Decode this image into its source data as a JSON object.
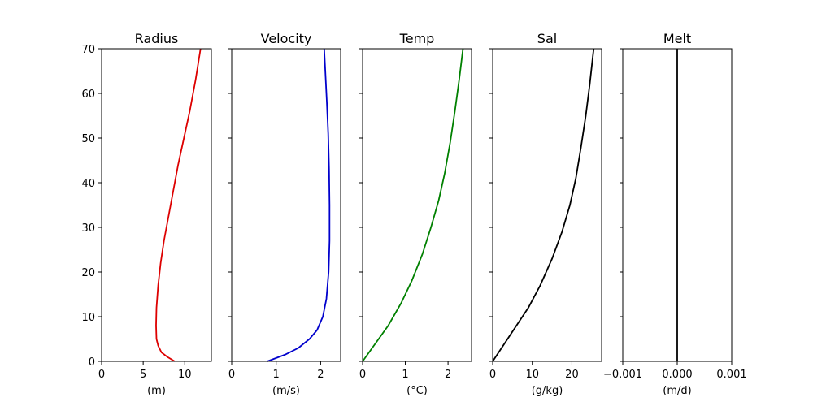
{
  "chart_data": [
    {
      "type": "line",
      "title": "Radius",
      "xlabel": "(m)",
      "xlim": [
        0,
        13.2
      ],
      "ylim": [
        0,
        70
      ],
      "xticks": [
        0,
        5,
        10
      ],
      "xtick_labels": [
        "0",
        "5",
        "10"
      ],
      "yticks": [
        0,
        10,
        20,
        30,
        40,
        50,
        60,
        70
      ],
      "ytick_labels": [
        "0",
        "10",
        "20",
        "30",
        "40",
        "50",
        "60",
        "70"
      ],
      "color": "#dd0000",
      "series": [
        {
          "x": [
            8.8,
            7.9,
            7.2,
            6.8,
            6.6,
            6.55,
            6.6,
            6.8,
            7.1,
            7.5,
            8.0,
            8.6,
            9.2,
            9.9,
            10.6,
            11.3,
            11.9
          ],
          "y": [
            0,
            1,
            2,
            3.5,
            5,
            8,
            12,
            17,
            22,
            27,
            32,
            38,
            44,
            50,
            56,
            63,
            70
          ]
        }
      ]
    },
    {
      "type": "line",
      "title": "Velocity",
      "xlabel": "(m/s)",
      "xlim": [
        0,
        2.45
      ],
      "ylim": [
        0,
        70
      ],
      "xticks": [
        0,
        1,
        2
      ],
      "xtick_labels": [
        "0",
        "1",
        "2"
      ],
      "yticks": [
        0,
        10,
        20,
        30,
        40,
        50,
        60,
        70
      ],
      "ytick_labels": [
        "",
        "",
        "",
        "",
        "",
        "",
        "",
        ""
      ],
      "color": "#0000cc",
      "series": [
        {
          "x": [
            0.8,
            1.2,
            1.5,
            1.75,
            1.92,
            2.05,
            2.13,
            2.18,
            2.2,
            2.2,
            2.19,
            2.17,
            2.14,
            2.11,
            2.08
          ],
          "y": [
            0,
            1.5,
            3,
            5,
            7,
            10,
            14,
            20,
            27,
            35,
            43,
            51,
            58,
            64,
            70
          ]
        }
      ]
    },
    {
      "type": "line",
      "title": "Temp",
      "xlabel": "(°C)",
      "xlim": [
        0,
        2.55
      ],
      "ylim": [
        0,
        70
      ],
      "xticks": [
        0,
        1,
        2
      ],
      "xtick_labels": [
        "0",
        "1",
        "2"
      ],
      "yticks": [
        0,
        10,
        20,
        30,
        40,
        50,
        60,
        70
      ],
      "ytick_labels": [
        "",
        "",
        "",
        "",
        "",
        "",
        "",
        ""
      ],
      "color": "#008000",
      "series": [
        {
          "x": [
            0,
            0.3,
            0.6,
            0.9,
            1.15,
            1.4,
            1.6,
            1.78,
            1.92,
            2.05,
            2.16,
            2.26,
            2.35
          ],
          "y": [
            0,
            4,
            8,
            13,
            18,
            24,
            30,
            36,
            42,
            49,
            56,
            63,
            70
          ]
        }
      ]
    },
    {
      "type": "line",
      "title": "Sal",
      "xlabel": "(g/kg)",
      "xlim": [
        0,
        27.5
      ],
      "ylim": [
        0,
        70
      ],
      "xticks": [
        0,
        10,
        20
      ],
      "xtick_labels": [
        "0",
        "10",
        "20"
      ],
      "yticks": [
        0,
        10,
        20,
        30,
        40,
        50,
        60,
        70
      ],
      "ytick_labels": [
        "",
        "",
        "",
        "",
        "",
        "",
        "",
        ""
      ],
      "color": "#000000",
      "series": [
        {
          "x": [
            0,
            3,
            6,
            9,
            12,
            15,
            17.5,
            19.5,
            21,
            22.3,
            23.5,
            24.5,
            25.5
          ],
          "y": [
            0,
            4,
            8,
            12,
            17,
            23,
            29,
            35,
            41,
            48,
            55,
            62,
            70
          ]
        }
      ]
    },
    {
      "type": "line",
      "title": "Melt",
      "xlabel": "(m/d)",
      "xlim": [
        -0.001,
        0.001
      ],
      "ylim": [
        0,
        70
      ],
      "xticks": [
        -0.001,
        0.0,
        0.001
      ],
      "xtick_labels": [
        "−0.001",
        "0.000",
        "0.001"
      ],
      "yticks": [
        0,
        10,
        20,
        30,
        40,
        50,
        60,
        70
      ],
      "ytick_labels": [
        "",
        "",
        "",
        "",
        "",
        "",
        "",
        ""
      ],
      "color": "#000000",
      "series": [
        {
          "x": [
            0,
            0
          ],
          "y": [
            0,
            70
          ]
        }
      ]
    }
  ]
}
